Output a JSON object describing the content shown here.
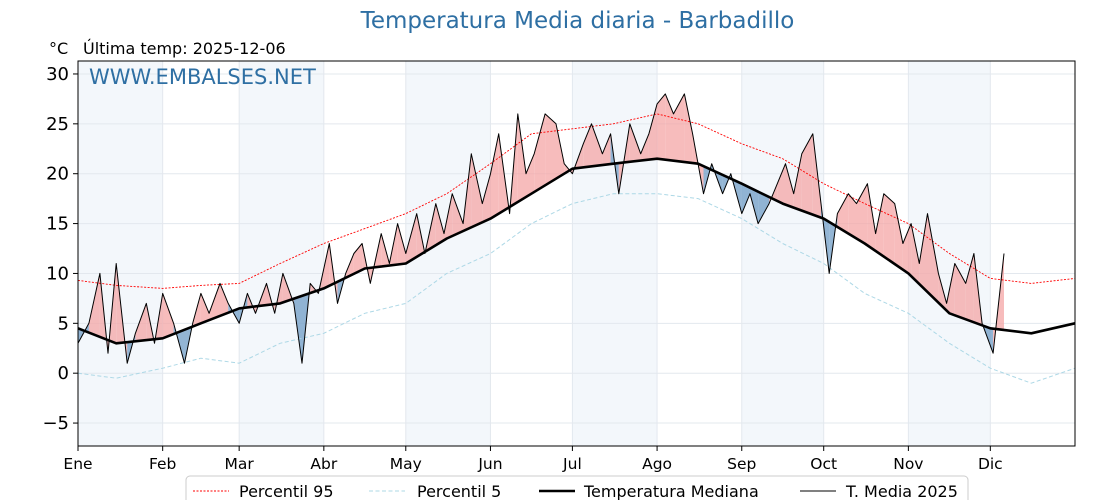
{
  "chart_data": {
    "type": "line",
    "title": "Temperatura Media diaria - Barbadillo",
    "unit_label": "°C",
    "last_update": "Última temp: 2025-12-06",
    "watermark": "WWW.EMBALSES.NET",
    "ylim": [
      -7.3,
      31.3
    ],
    "yticks": [
      -5,
      0,
      5,
      10,
      15,
      20,
      25,
      30
    ],
    "xlim": [
      1,
      366
    ],
    "months": [
      {
        "label": "Ene",
        "day": 1
      },
      {
        "label": "Feb",
        "day": 32
      },
      {
        "label": "Mar",
        "day": 60
      },
      {
        "label": "Abr",
        "day": 91
      },
      {
        "label": "May",
        "day": 121
      },
      {
        "label": "Jun",
        "day": 152
      },
      {
        "label": "Jul",
        "day": 182
      },
      {
        "label": "Ago",
        "day": 213
      },
      {
        "label": "Sep",
        "day": 244
      },
      {
        "label": "Oct",
        "day": 274
      },
      {
        "label": "Nov",
        "day": 305
      },
      {
        "label": "Dic",
        "day": 335
      }
    ],
    "grid": true,
    "legend_position": "bottom",
    "series": [
      {
        "name": "Percentil 95",
        "style": "dotted",
        "color": "#ff0000",
        "x": [
          1,
          15,
          32,
          46,
          60,
          75,
          91,
          106,
          121,
          136,
          152,
          167,
          182,
          197,
          213,
          228,
          244,
          259,
          274,
          289,
          305,
          320,
          335,
          350,
          366
        ],
        "values": [
          9.3,
          8.8,
          8.5,
          8.8,
          9.0,
          11,
          13,
          14.5,
          16,
          18,
          21,
          24,
          24.5,
          25,
          26,
          25,
          23,
          21.5,
          19,
          17,
          15,
          12,
          9.5,
          9,
          9.5
        ]
      },
      {
        "name": "Percentil 5",
        "style": "dashed",
        "color": "#add8e6",
        "x": [
          1,
          15,
          32,
          46,
          60,
          75,
          91,
          106,
          121,
          136,
          152,
          167,
          182,
          197,
          213,
          228,
          244,
          259,
          274,
          289,
          305,
          320,
          335,
          350,
          366
        ],
        "values": [
          0,
          -0.5,
          0.5,
          1.5,
          1,
          3,
          4,
          6,
          7,
          10,
          12,
          15,
          17,
          18,
          18,
          17.5,
          15.5,
          13,
          11,
          8,
          6,
          3,
          0.5,
          -1,
          0.5
        ]
      },
      {
        "name": "Temperatura Mediana",
        "style": "solid-thick",
        "color": "#000000",
        "x": [
          1,
          15,
          32,
          46,
          60,
          75,
          91,
          106,
          121,
          136,
          152,
          167,
          182,
          197,
          213,
          228,
          244,
          259,
          274,
          289,
          305,
          320,
          335,
          350,
          366
        ],
        "values": [
          4.5,
          3,
          3.5,
          5,
          6.5,
          7,
          8.5,
          10.5,
          11,
          13.5,
          15.5,
          18,
          20.5,
          21,
          21.5,
          21,
          19,
          17,
          15.5,
          13,
          10,
          6,
          4.5,
          4,
          5
        ]
      },
      {
        "name": "T. Media 2025",
        "style": "solid-thin",
        "color": "#000000",
        "x": [
          1,
          5,
          9,
          12,
          15,
          19,
          22,
          26,
          29,
          32,
          36,
          40,
          43,
          46,
          49,
          53,
          56,
          60,
          63,
          66,
          70,
          73,
          76,
          80,
          83,
          86,
          89,
          93,
          96,
          99,
          102,
          105,
          108,
          112,
          115,
          118,
          121,
          125,
          128,
          132,
          135,
          138,
          142,
          145,
          149,
          152,
          155,
          159,
          162,
          165,
          168,
          172,
          176,
          179,
          182,
          186,
          189,
          193,
          196,
          199,
          203,
          207,
          210,
          213,
          216,
          219,
          223,
          226,
          230,
          233,
          237,
          240,
          244,
          247,
          250,
          254,
          257,
          260,
          263,
          266,
          270,
          273,
          276,
          279,
          283,
          286,
          290,
          293,
          296,
          300,
          303,
          306,
          309,
          312,
          316,
          319,
          322,
          326,
          329,
          332,
          336,
          340
        ],
        "values": [
          3,
          5,
          10,
          2,
          11,
          1,
          4,
          7,
          3,
          8,
          5,
          1,
          5,
          8,
          6,
          9,
          7,
          5,
          8,
          6,
          9,
          6,
          10,
          7,
          1,
          9,
          8,
          13,
          7,
          10,
          12,
          13,
          9,
          14,
          11,
          15,
          12,
          16,
          12,
          17,
          14,
          18,
          15,
          22,
          17,
          20,
          24,
          16,
          26,
          20,
          22,
          26,
          25,
          21,
          20,
          23,
          25,
          22,
          24,
          18,
          25,
          22,
          24,
          27,
          28,
          26,
          28,
          24,
          18,
          21,
          18,
          20,
          16,
          18,
          15,
          17,
          19,
          21,
          18,
          22,
          24,
          17,
          10,
          16,
          18,
          17,
          19,
          14,
          18,
          17,
          13,
          15,
          11,
          16,
          10,
          7,
          11,
          9,
          12,
          5,
          2,
          12
        ]
      }
    ]
  }
}
